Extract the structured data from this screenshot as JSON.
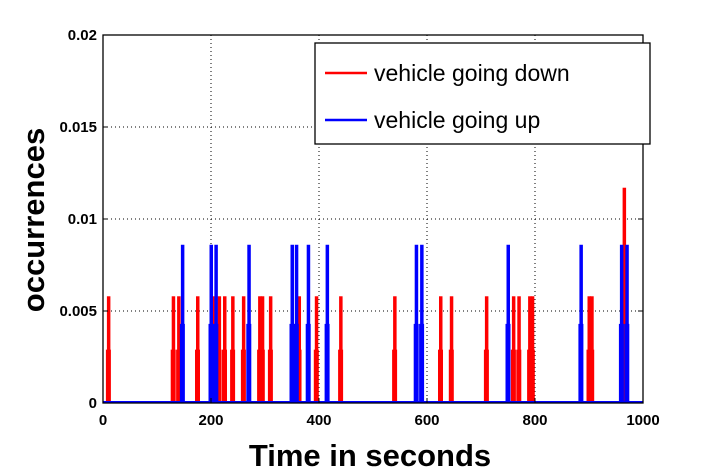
{
  "chart_data": {
    "type": "bar",
    "title": "",
    "xlabel": "Time in seconds",
    "ylabel": "occurrences",
    "xlim": [
      0,
      1000
    ],
    "ylim": [
      0,
      0.02
    ],
    "xticks": [
      "0",
      "200",
      "400",
      "600",
      "800",
      "1000"
    ],
    "xtick_values": [
      0,
      200,
      400,
      600,
      800,
      1000
    ],
    "yticks": [
      "0",
      "0.005",
      "0.01",
      "0.015",
      "0.02"
    ],
    "ytick_values": [
      0,
      0.005,
      0.01,
      0.015,
      0.02
    ],
    "grid": true,
    "legend_position": "top-right",
    "series": [
      {
        "name": "vehicle going down",
        "color": "#ff0000",
        "x": [
          10,
          130,
          140,
          175,
          205,
          215,
          225,
          240,
          260,
          290,
          295,
          310,
          363,
          395,
          440,
          540,
          625,
          645,
          710,
          760,
          770,
          790,
          795,
          900,
          905,
          965
        ],
        "values": [
          0.0058,
          0.0058,
          0.0058,
          0.0058,
          0.0058,
          0.0058,
          0.0058,
          0.0058,
          0.0058,
          0.0058,
          0.0058,
          0.0058,
          0.0058,
          0.0058,
          0.0058,
          0.0058,
          0.0058,
          0.0058,
          0.0058,
          0.0058,
          0.0058,
          0.0058,
          0.0058,
          0.0058,
          0.0058,
          0.0117
        ]
      },
      {
        "name": "vehicle going up",
        "color": "#0000ff",
        "x": [
          147,
          200,
          209,
          270,
          350,
          358,
          380,
          415,
          580,
          590,
          750,
          885,
          960,
          970
        ],
        "values": [
          0.0086,
          0.0086,
          0.0086,
          0.0086,
          0.0086,
          0.0086,
          0.0086,
          0.0086,
          0.0086,
          0.0086,
          0.0086,
          0.0086,
          0.0086,
          0.0086
        ]
      }
    ]
  }
}
